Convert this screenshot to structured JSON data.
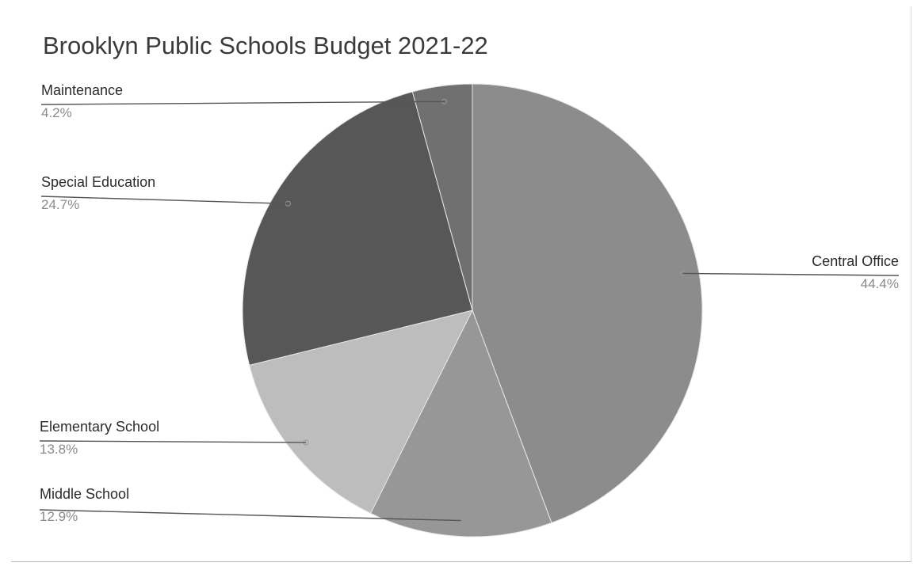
{
  "chart_data": {
    "type": "pie",
    "title": "Brooklyn Public Schools Budget 2021-22",
    "categories": [
      "Central Office",
      "Middle School",
      "Elementary School",
      "Special Education",
      "Maintenance"
    ],
    "values": [
      44.4,
      12.9,
      13.8,
      24.7,
      4.2
    ],
    "value_labels": [
      "44.4%",
      "12.9%",
      "13.8%",
      "24.7%",
      "4.2%"
    ],
    "colors": [
      "#8c8c8c",
      "#979797",
      "#bdbdbd",
      "#575757",
      "#707070"
    ],
    "legend": "none"
  }
}
